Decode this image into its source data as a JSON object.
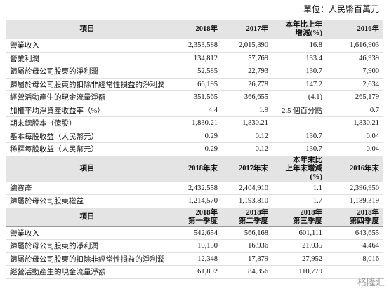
{
  "unit": "單位：人民幣百萬元",
  "sections": [
    {
      "headers": [
        "項目",
        "2018年",
        "2017年",
        "本年比上年\n增減(%)",
        "2016年"
      ],
      "rows": [
        [
          "營業收入",
          "2,353,588",
          "2,015,890",
          "16.8",
          "1,616,903"
        ],
        [
          "營業利潤",
          "134,812",
          "57,769",
          "133.4",
          "46,939"
        ],
        [
          "歸屬於母公司股東的淨利潤",
          "52,585",
          "22,793",
          "130.7",
          "7,900"
        ],
        [
          "歸屬於母公司股東的扣除非經常性損益的淨利潤",
          "66,195",
          "26,778",
          "147.2",
          "2,634"
        ],
        [
          "經營活動產生的現金流量淨額",
          "351,565",
          "366,655",
          "(4.1)",
          "265,179"
        ],
        [
          "加權平均淨資產收益率（%）",
          "4.4",
          "1.9",
          "2.5 個百分點",
          "0.7"
        ],
        [
          "期末總股本（億股）",
          "1,830.21",
          "1,830.21",
          "-",
          "1,830.21"
        ],
        [
          "基本每股收益（人民幣元）",
          "0.29",
          "0.12",
          "130.7",
          "0.04"
        ],
        [
          "稀釋每股收益（人民幣元）",
          "0.29",
          "0.12",
          "130.7",
          "0.04"
        ]
      ]
    },
    {
      "headers": [
        "項目",
        "2018年末",
        "2017年末",
        "本年末比\n上年末增減(%)",
        "2016年末"
      ],
      "rows": [
        [
          "總資產",
          "2,432,558",
          "2,404,910",
          "1.1",
          "2,396,950"
        ],
        [
          "歸屬於母公司股東權益",
          "1,214,570",
          "1,193,810",
          "1.7",
          "1,189,319"
        ]
      ]
    },
    {
      "headers": [
        "項目",
        "2018年\n第一季度",
        "2018年\n第二季度",
        "2018年\n第三季度",
        "2018年\n第四季度"
      ],
      "rows": [
        [
          "營業收入",
          "542,654",
          "566,168",
          "601,111",
          "643,655"
        ],
        [
          "歸屬於母公司股東的淨利潤",
          "10,150",
          "16,936",
          "21,035",
          "4,464"
        ],
        [
          "歸屬於母公司股東的扣除非經常性損益的淨利潤",
          "12,348",
          "17,879",
          "27,952",
          "8,016"
        ],
        [
          "經營活動產生的現金流量淨額",
          "61,802",
          "84,356",
          "110,779",
          null
        ]
      ]
    }
  ],
  "watermark": "格隆汇"
}
